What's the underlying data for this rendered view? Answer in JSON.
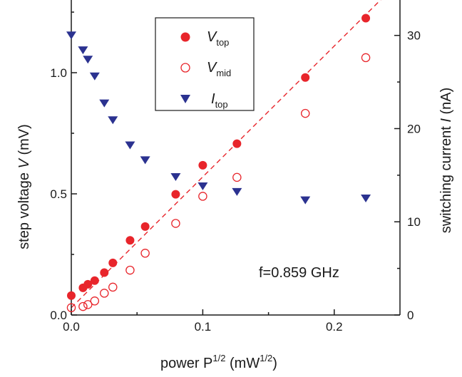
{
  "chart_data": {
    "type": "scatter",
    "xlabel": {
      "main": "power  P",
      "sup": "1/2",
      "units_open": " (mW",
      "units_sup": "1/2",
      "units_close": ")"
    },
    "ylabel_left": {
      "main": "step voltage  ",
      "var": "V",
      "units": "  (mV)"
    },
    "ylabel_right": {
      "main": "switching current   ",
      "var": "I",
      "units": "  (nA)"
    },
    "xlim": [
      0,
      0.25
    ],
    "ylim_left": [
      0,
      1.3
    ],
    "ylim_right": [
      0,
      33.8
    ],
    "x_ticks": [
      {
        "v": 0,
        "label": "0.0"
      },
      {
        "v": 0.1,
        "label": "0.1"
      },
      {
        "v": 0.2,
        "label": "0.2"
      }
    ],
    "y_left_ticks": [
      {
        "v": 0,
        "label": "0.0"
      },
      {
        "v": 0.5,
        "label": "0.5"
      },
      {
        "v": 1.0,
        "label": "1.0"
      }
    ],
    "y_right_ticks": [
      {
        "v": 0,
        "label": "0"
      },
      {
        "v": 10,
        "label": "10"
      },
      {
        "v": 20,
        "label": "20"
      },
      {
        "v": 30,
        "label": "30"
      }
    ],
    "annotation": "f=0.859 GHz",
    "legend_position": "top-center",
    "colors": {
      "red": "#e8252b",
      "blue": "#2b3290"
    },
    "series": [
      {
        "name": "V",
        "name_sub": "top",
        "marker": "filled-circle",
        "axis": "left",
        "x": [
          0.0,
          0.0089,
          0.0126,
          0.0178,
          0.0251,
          0.0316,
          0.0447,
          0.0562,
          0.0794,
          0.1,
          0.126,
          0.178,
          0.224
        ],
        "y": [
          0.08,
          0.112,
          0.127,
          0.142,
          0.175,
          0.215,
          0.308,
          0.365,
          0.498,
          0.618,
          0.707,
          0.98,
          1.225
        ]
      },
      {
        "name": "V",
        "name_sub": "mid",
        "marker": "open-circle",
        "axis": "left",
        "x": [
          0.0,
          0.0089,
          0.0126,
          0.0178,
          0.0251,
          0.0316,
          0.0447,
          0.0562,
          0.0794,
          0.1,
          0.126,
          0.178,
          0.224
        ],
        "y": [
          0.03,
          0.035,
          0.043,
          0.058,
          0.09,
          0.115,
          0.185,
          0.255,
          0.378,
          0.49,
          0.568,
          0.832,
          1.062
        ]
      },
      {
        "name": "I",
        "name_sub": "top",
        "marker": "down-triangle",
        "axis": "right",
        "x": [
          0.0,
          0.0089,
          0.0126,
          0.0178,
          0.0251,
          0.0316,
          0.0447,
          0.0562,
          0.0794,
          0.1,
          0.126,
          0.178,
          0.224
        ],
        "y": [
          30.0,
          28.4,
          27.4,
          25.6,
          22.7,
          20.9,
          18.2,
          16.6,
          14.8,
          13.8,
          13.2,
          12.3,
          12.5
        ]
      }
    ],
    "fit_line": {
      "style": "dashed",
      "color": "#e8252b",
      "x": [
        0.0,
        0.25
      ],
      "y": [
        0.03,
        1.38
      ]
    }
  }
}
